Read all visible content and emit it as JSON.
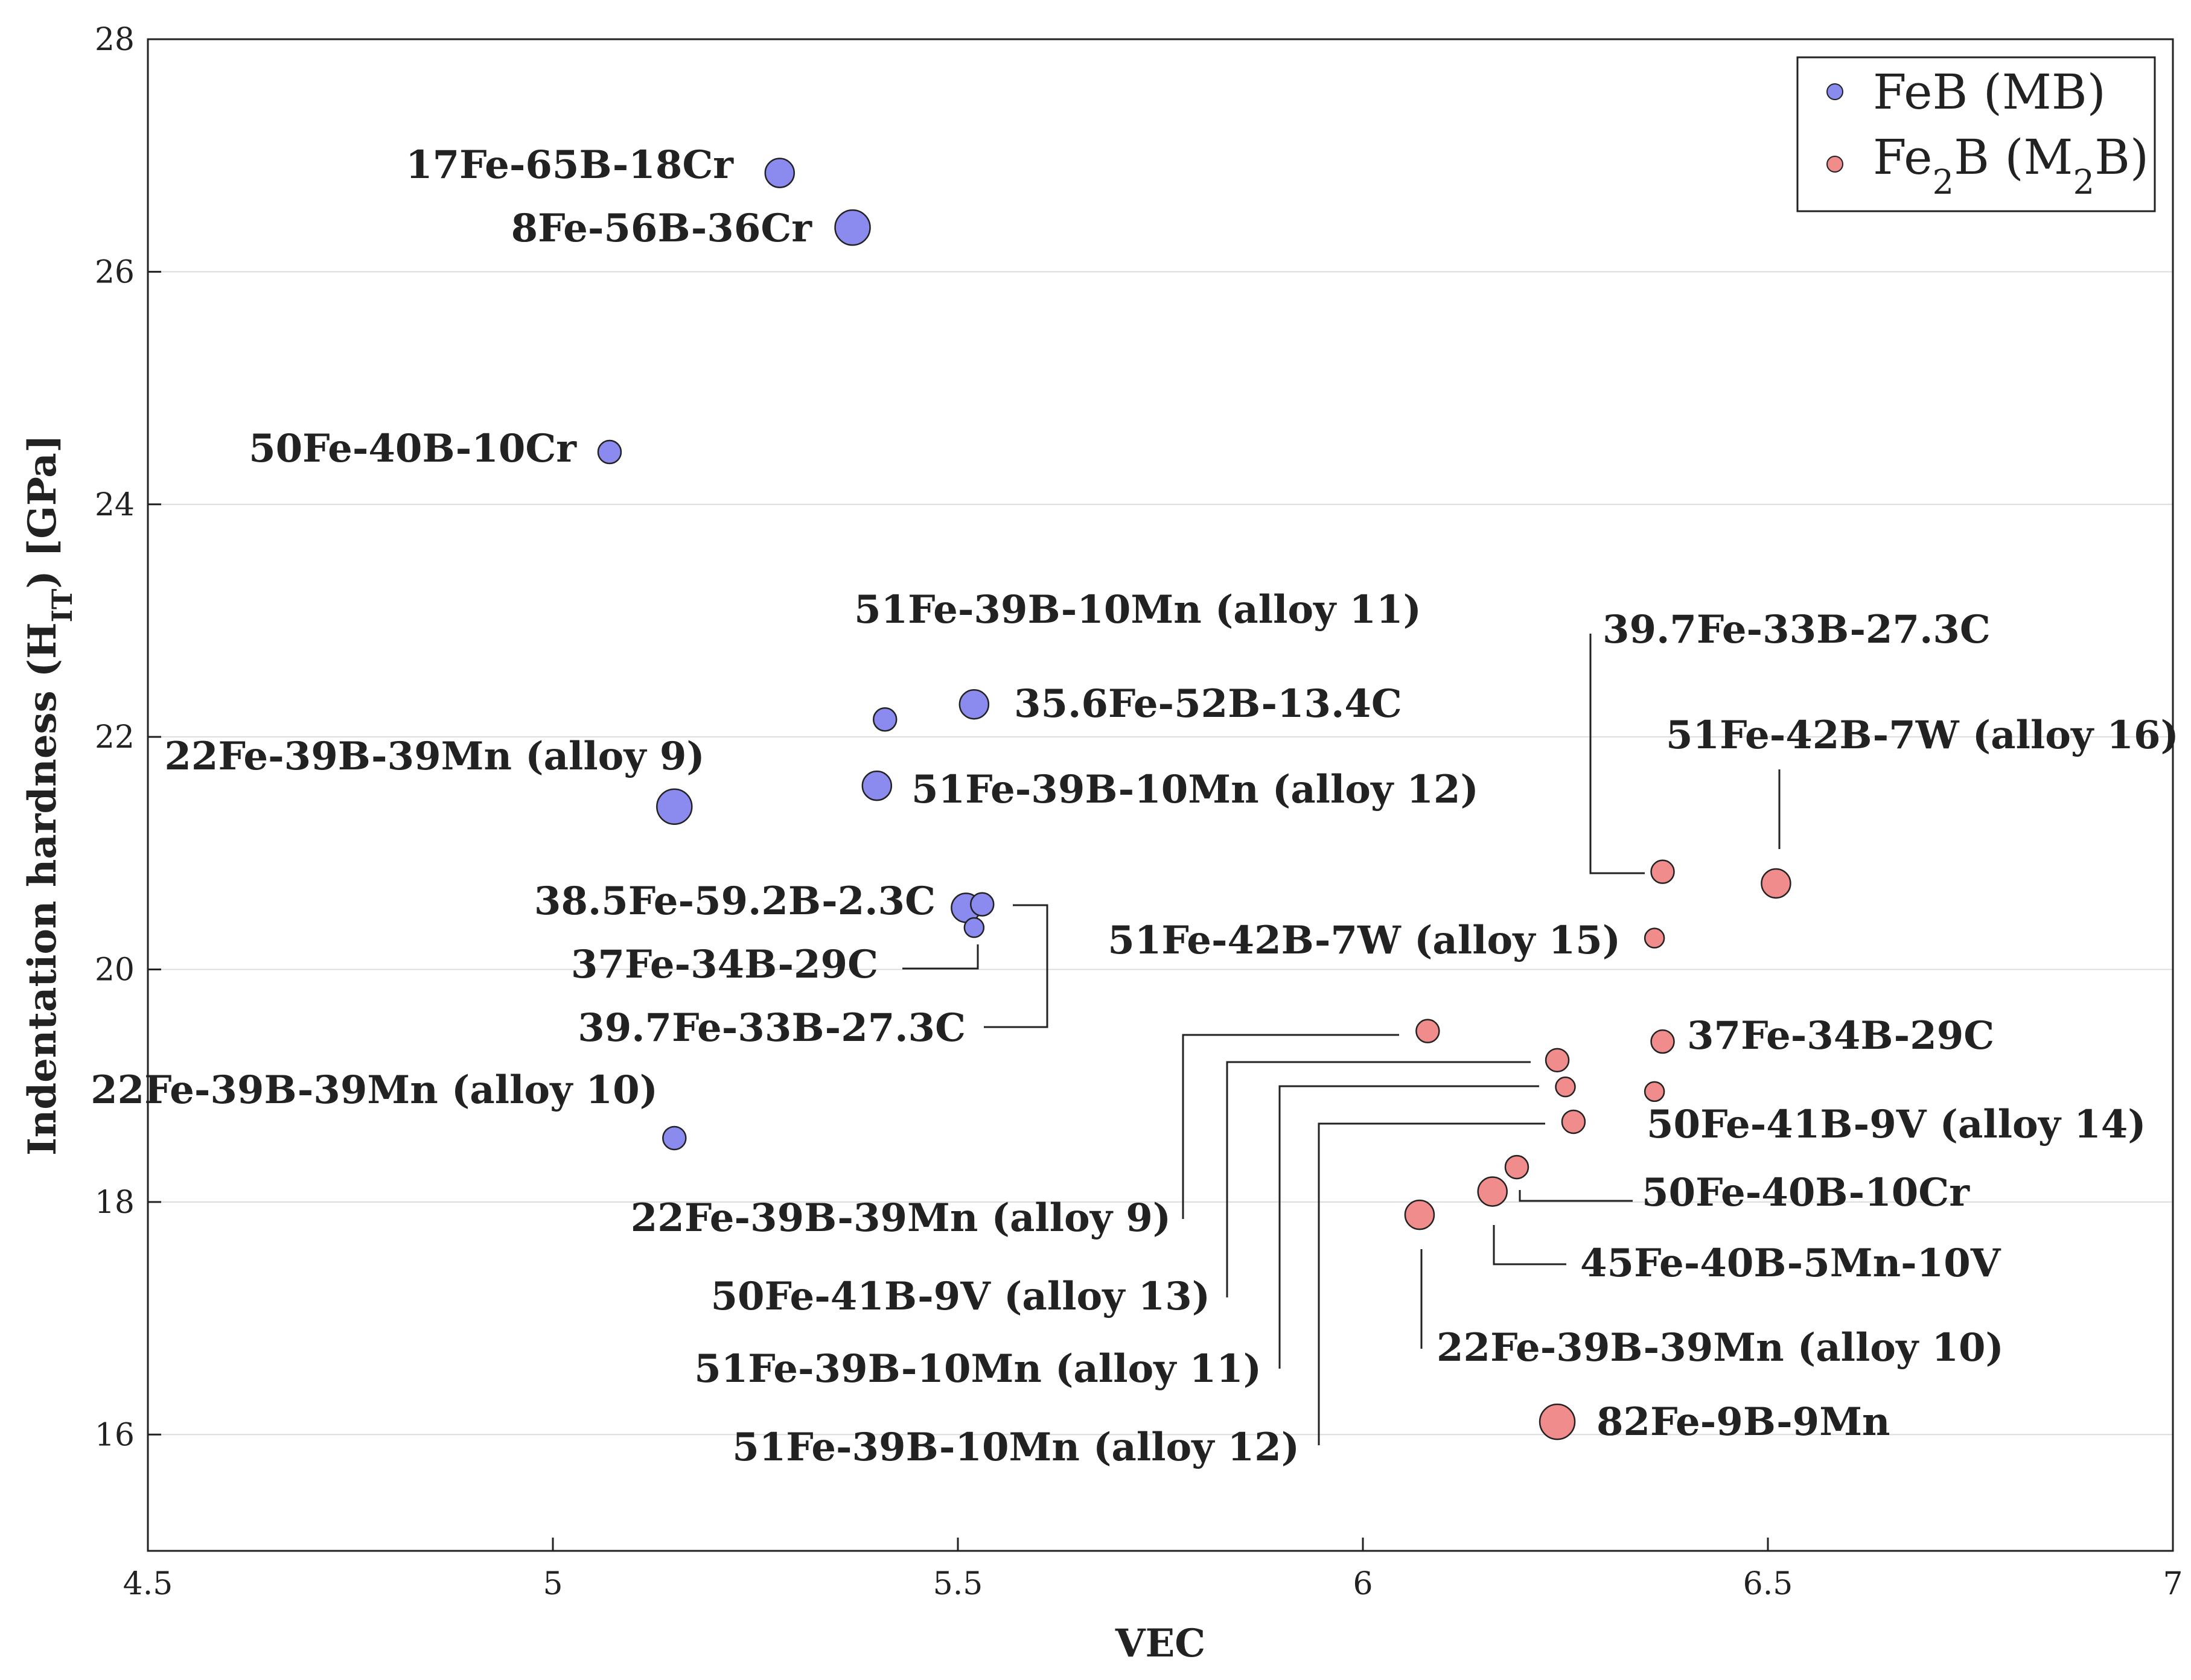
{
  "chart_data": {
    "type": "scatter",
    "xlabel": "VEC",
    "ylabel": "Indentation hardness (H",
    "ylabel_sub": "IT",
    "ylabel_tail": ") [GPa]",
    "xlim": [
      4.5,
      7
    ],
    "ylim": [
      15,
      28
    ],
    "xticks": [
      "4.5",
      "5",
      "5.5",
      "6",
      "6.5",
      "7"
    ],
    "yticks": [
      "16",
      "18",
      "20",
      "22",
      "24",
      "26",
      "28"
    ],
    "grid": "horizontal",
    "legend_position": "top-right",
    "legend": {
      "feb": "FeB (MB)",
      "fe2b_a": "Fe",
      "fe2b_sub1": "2",
      "fe2b_b": "B (M",
      "fe2b_sub2": "2",
      "fe2b_c": "B)"
    },
    "series": [
      {
        "name": "FeB (MB)",
        "color": "#8b8bef",
        "points": [
          {
            "label": "17Fe-65B-18Cr",
            "x": 5.28,
            "y": 26.85,
            "size": 2
          },
          {
            "label": "8Fe-56B-36Cr",
            "x": 5.37,
            "y": 26.38,
            "size": 3
          },
          {
            "label": "50Fe-40B-10Cr",
            "x": 5.07,
            "y": 24.45,
            "size": 1
          },
          {
            "label": "51Fe-39B-10Mn (alloy 11)",
            "x": 5.41,
            "y": 22.15,
            "size": 1
          },
          {
            "label": "35.6Fe-52B-13.4C",
            "x": 5.52,
            "y": 22.28,
            "size": 2
          },
          {
            "label": "22Fe-39B-39Mn (alloy 9)",
            "x": 5.15,
            "y": 21.4,
            "size": 3
          },
          {
            "label": "51Fe-39B-10Mn (alloy 12)",
            "x": 5.4,
            "y": 21.58,
            "size": 2
          },
          {
            "label": "38.5Fe-59.2B-2.3C",
            "x": 5.51,
            "y": 20.53,
            "size": 2
          },
          {
            "label": "39.7Fe-33B-27.3C",
            "x": 5.53,
            "y": 20.56,
            "size": 1
          },
          {
            "label": "37Fe-34B-29C",
            "x": 5.52,
            "y": 20.36,
            "size": 0
          },
          {
            "label": "22Fe-39B-39Mn (alloy 10)",
            "x": 5.15,
            "y": 18.55,
            "size": 1
          }
        ]
      },
      {
        "name": "Fe2B (M2B)",
        "color": "#f08c8c",
        "points": [
          {
            "label": "39.7Fe-33B-27.3C",
            "x": 6.37,
            "y": 20.84,
            "size": 1
          },
          {
            "label": "51Fe-42B-7W (alloy 16)",
            "x": 6.51,
            "y": 20.74,
            "size": 2
          },
          {
            "label": "51Fe-42B-7W (alloy 15)",
            "x": 6.36,
            "y": 20.27,
            "size": 0
          },
          {
            "label": "22Fe-39B-39Mn (alloy 9)",
            "x": 6.08,
            "y": 19.47,
            "size": 1
          },
          {
            "label": "37Fe-34B-29C",
            "x": 6.37,
            "y": 19.38,
            "size": 1
          },
          {
            "label": "50Fe-41B-9V (alloy 13)",
            "x": 6.24,
            "y": 19.22,
            "size": 1
          },
          {
            "label": "51Fe-39B-10Mn (alloy 11)",
            "x": 6.25,
            "y": 18.99,
            "size": 0
          },
          {
            "label": "50Fe-41B-9V (alloy 14)",
            "x": 6.36,
            "y": 18.95,
            "size": 0
          },
          {
            "label": "51Fe-39B-10Mn (alloy 12)",
            "x": 6.26,
            "y": 18.69,
            "size": 1
          },
          {
            "label": "50Fe-40B-10Cr",
            "x": 6.19,
            "y": 18.3,
            "size": 1
          },
          {
            "label": "45Fe-40B-5Mn-10V",
            "x": 6.16,
            "y": 18.09,
            "size": 2
          },
          {
            "label": "22Fe-39B-39Mn (alloy 10)",
            "x": 6.07,
            "y": 17.89,
            "size": 2
          },
          {
            "label": "82Fe-9B-9Mn",
            "x": 6.24,
            "y": 16.11,
            "size": 3
          }
        ]
      }
    ]
  }
}
